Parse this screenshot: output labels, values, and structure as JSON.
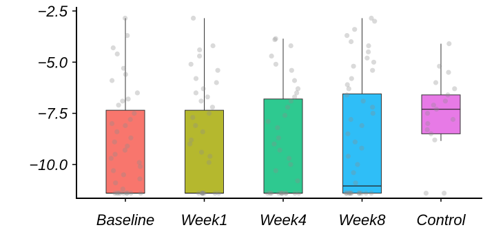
{
  "chart_data": {
    "type": "box",
    "title": "",
    "xlabel": "",
    "ylabel": "",
    "ylim": [
      -11.65,
      -2.3
    ],
    "yticks": [
      -10.0,
      -7.5,
      -5.0,
      -2.5
    ],
    "ytick_labels": [
      "−10.0",
      "−7.5",
      "−5.0",
      "−2.5"
    ],
    "categories": [
      "Baseline",
      "Week1",
      "Week4",
      "Week8",
      "Control"
    ],
    "colors": [
      "#F8766D",
      "#B5B82E",
      "#2EC990",
      "#2FBEF7",
      "#E77AE6"
    ],
    "boxes": [
      {
        "category": "Baseline",
        "min": -11.4,
        "q1": -11.4,
        "median": -11.4,
        "q3": -7.35,
        "max": -2.85
      },
      {
        "category": "Week1",
        "min": -11.4,
        "q1": -11.4,
        "median": -11.4,
        "q3": -7.35,
        "max": -2.85
      },
      {
        "category": "Week4",
        "min": -11.4,
        "q1": -11.4,
        "median": -11.4,
        "q3": -6.8,
        "max": -3.85
      },
      {
        "category": "Week8",
        "min": -11.4,
        "q1": -11.4,
        "median": -11.05,
        "q3": -6.55,
        "max": -2.85
      },
      {
        "category": "Control",
        "min": -8.85,
        "q1": -8.5,
        "median": -7.3,
        "q3": -6.6,
        "max": -4.1
      }
    ],
    "points": [
      {
        "category": "Baseline",
        "values": [
          -2.85,
          -3.7,
          -4.3,
          -4.6,
          -5.3,
          -5.6,
          -5.9,
          -6.5,
          -6.8,
          -6.9,
          -7.1,
          -7.5,
          -7.8,
          -8.0,
          -8.1,
          -8.4,
          -8.7,
          -8.9,
          -9.1,
          -9.3,
          -9.5,
          -9.7,
          -9.9,
          -10.1,
          -10.3,
          -10.5,
          -10.7,
          -10.9,
          -11.2,
          -11.4,
          -11.4,
          -11.4,
          -11.4,
          -11.4,
          -11.4,
          -11.4,
          -11.4,
          -11.4
        ]
      },
      {
        "category": "Week1",
        "values": [
          -2.85,
          -4.2,
          -4.4,
          -4.7,
          -5.1,
          -5.4,
          -5.8,
          -6.0,
          -6.3,
          -6.5,
          -6.7,
          -6.9,
          -7.2,
          -7.5,
          -7.7,
          -8.1,
          -8.4,
          -8.8,
          -9.0,
          -9.4,
          -9.6,
          -9.9,
          -11.4,
          -11.4,
          -11.4,
          -11.4,
          -11.4,
          -11.4,
          -11.4,
          -11.4
        ]
      },
      {
        "category": "Week4",
        "values": [
          -3.85,
          -3.9,
          -4.2,
          -4.7,
          -5.1,
          -5.4,
          -5.9,
          -6.3,
          -6.5,
          -6.7,
          -6.9,
          -7.2,
          -7.6,
          -7.9,
          -8.2,
          -8.7,
          -9.0,
          -9.3,
          -9.7,
          -10.0,
          -10.3,
          -10.8,
          -11.4,
          -11.4,
          -11.4,
          -11.4,
          -11.4,
          -11.4,
          -11.4,
          -11.4,
          -11.4,
          -11.4,
          -11.4
        ]
      },
      {
        "category": "Week8",
        "values": [
          -2.85,
          -3.0,
          -3.4,
          -3.7,
          -4.0,
          -4.2,
          -4.5,
          -4.8,
          -5.0,
          -5.2,
          -5.4,
          -5.8,
          -6.1,
          -6.3,
          -6.6,
          -6.9,
          -7.2,
          -7.5,
          -7.8,
          -8.1,
          -8.5,
          -8.9,
          -9.2,
          -9.6,
          -10.0,
          -10.4,
          -10.9,
          -11.4,
          -11.4,
          -11.4,
          -11.4,
          -11.4,
          -11.4,
          -11.4,
          -11.4,
          -11.4,
          -11.4,
          -11.4
        ]
      },
      {
        "category": "Control",
        "values": [
          -4.1,
          -5.2,
          -5.5,
          -6.0,
          -6.3,
          -6.6,
          -6.9,
          -7.1,
          -7.3,
          -7.5,
          -7.8,
          -8.0,
          -8.3,
          -8.5,
          -8.8,
          -11.4,
          -11.4
        ]
      }
    ],
    "grid": false,
    "legend": "none"
  }
}
